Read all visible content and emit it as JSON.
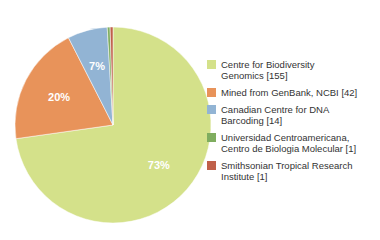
{
  "chart_data": {
    "type": "pie",
    "categories": [
      "Centre for Biodiversity\nGenomics [155]",
      "Mined from GenBank, NCBI [42]",
      "Canadian Centre for DNA\nBarcoding [14]",
      "Universidad Centroamericana,\nCentro de Biologia Molecular [1]",
      "Smithsonian Tropical Research\nInstitute [1]"
    ],
    "values": [
      72.77,
      19.72,
      6.57,
      0.47,
      0.47
    ],
    "value_labels": [
      "73%",
      "20%",
      "7%",
      null,
      null
    ],
    "colors": [
      "#d4e18a",
      "#e8935a",
      "#92b4d4",
      "#7fad5f",
      "#c0604a"
    ],
    "data_labels": true,
    "legend": "right"
  }
}
